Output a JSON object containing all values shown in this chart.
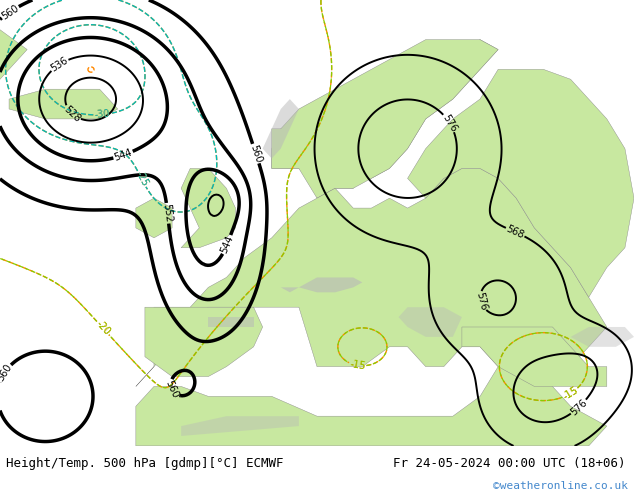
{
  "title_left": "Height/Temp. 500 hPa [gdmp][°C] ECMWF",
  "title_right": "Fr 24-05-2024 00:00 UTC (18+06)",
  "watermark": "©weatheronline.co.uk",
  "land_color": "#c8e8a0",
  "ocean_color": "#e8e8e8",
  "gray_terrain": "#b0b0b0",
  "hgt_color": "#000000",
  "temp_neg_color": "#ff8800",
  "temp_pos_color": "#00bbbb",
  "temp_green_color": "#88cc00",
  "text_color": "#000000",
  "watermark_color": "#4488cc",
  "font_size_title": 9,
  "font_size_watermark": 8,
  "hgt_linewidth": 1.5,
  "temp_linewidth": 1.0
}
